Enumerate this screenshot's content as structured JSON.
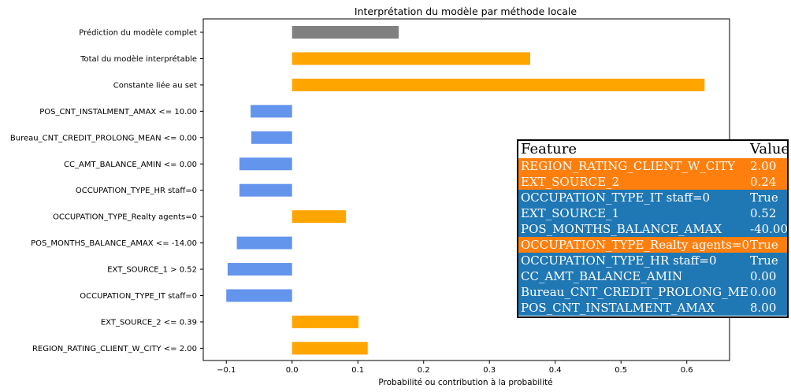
{
  "chart_data": {
    "type": "bar",
    "orientation": "horizontal",
    "title": "Interprétation du modèle par méthode locale",
    "xlabel": "Probabilité ou contribution à la probabilité",
    "ylabel": "",
    "xlim": [
      -0.135,
      0.665
    ],
    "xticks": [
      -0.1,
      0.0,
      0.1,
      0.2,
      0.3,
      0.4,
      0.5,
      0.6
    ],
    "xtick_labels": [
      "−0.1",
      "0.0",
      "0.1",
      "0.2",
      "0.3",
      "0.4",
      "0.5",
      "0.6"
    ],
    "grid": false,
    "categories": [
      "Prédiction du modèle complet",
      "Total du modèle interprétable",
      "Constante liée au set",
      "POS_CNT_INSTALMENT_AMAX <= 10.00",
      "Bureau_CNT_CREDIT_PROLONG_MEAN <= 0.00",
      "CC_AMT_BALANCE_AMIN <= 0.00",
      "OCCUPATION_TYPE_HR staff=0",
      "OCCUPATION_TYPE_Realty agents=0",
      "POS_MONTHS_BALANCE_AMAX <= -14.00",
      "EXT_SOURCE_1 > 0.52",
      "OCCUPATION_TYPE_IT staff=0",
      "EXT_SOURCE_2 <= 0.39",
      "REGION_RATING_CLIENT_W_CITY <= 2.00"
    ],
    "values": [
      0.162,
      0.362,
      0.627,
      -0.063,
      -0.062,
      -0.08,
      -0.08,
      0.082,
      -0.084,
      -0.098,
      -0.1,
      0.101,
      0.115
    ],
    "colors": [
      "#808080",
      "#ffa500",
      "#ffa500",
      "#6495ed",
      "#6495ed",
      "#6495ed",
      "#6495ed",
      "#ffa500",
      "#6495ed",
      "#6495ed",
      "#6495ed",
      "#ffa500",
      "#ffa500"
    ]
  },
  "feature_table": {
    "header": {
      "feature": "Feature",
      "value": "Value"
    },
    "rows": [
      {
        "feature": "REGION_RATING_CLIENT_W_CITY",
        "value": "2.00",
        "color": "#ff7f0e"
      },
      {
        "feature": "EXT_SOURCE_2",
        "value": "0.24",
        "color": "#ff7f0e"
      },
      {
        "feature": "OCCUPATION_TYPE_IT staff=0",
        "value": "True",
        "color": "#1f77b4"
      },
      {
        "feature": "EXT_SOURCE_1",
        "value": "0.52",
        "color": "#1f77b4"
      },
      {
        "feature": "POS_MONTHS_BALANCE_AMAX",
        "value": "-40.00",
        "color": "#1f77b4"
      },
      {
        "feature": "OCCUPATION_TYPE_Realty agents=0",
        "value": "True",
        "color": "#ff7f0e"
      },
      {
        "feature": "OCCUPATION_TYPE_HR staff=0",
        "value": "True",
        "color": "#1f77b4"
      },
      {
        "feature": "CC_AMT_BALANCE_AMIN",
        "value": "0.00",
        "color": "#1f77b4"
      },
      {
        "feature": "Bureau_CNT_CREDIT_PROLONG_MEAN",
        "value": "0.00",
        "color": "#1f77b4"
      },
      {
        "feature": "POS_CNT_INSTALMENT_AMAX",
        "value": "8.00",
        "color": "#1f77b4"
      }
    ]
  }
}
